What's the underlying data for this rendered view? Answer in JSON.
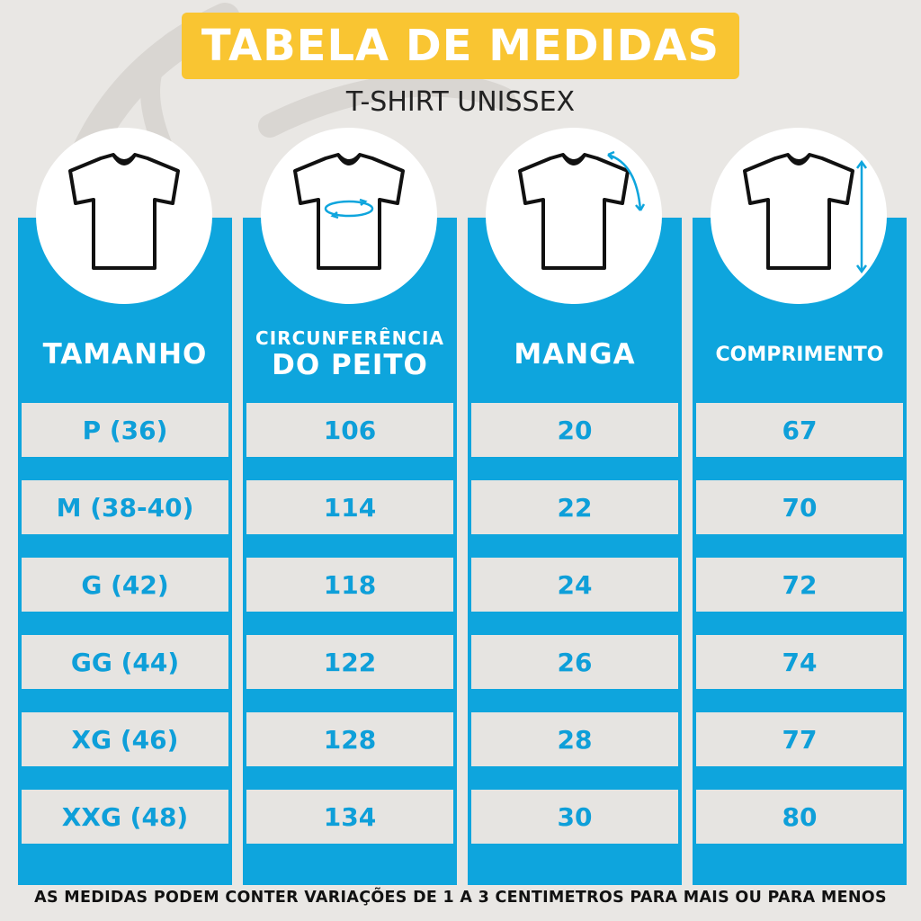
{
  "title": "TABELA DE MEDIDAS",
  "subtitle": "T-SHIRT UNISSEX",
  "colors": {
    "accent_yellow": "#f9c532",
    "accent_blue": "#0ea5dd",
    "cell_bg": "#e6e4e1",
    "background": "#e9e7e4"
  },
  "columns": [
    {
      "header_line1": "TAMANHO",
      "header_line2": "",
      "icon": "tshirt-icon"
    },
    {
      "header_line1": "CIRCUNFERÊNCIA",
      "header_line2": "DO PEITO",
      "icon": "tshirt-chest-measure-icon"
    },
    {
      "header_line1": "MANGA",
      "header_line2": "",
      "icon": "tshirt-sleeve-measure-icon"
    },
    {
      "header_line1": "COMPRIMENTO",
      "header_line2": "",
      "icon": "tshirt-length-measure-icon"
    }
  ],
  "rows": [
    [
      "P (36)",
      "106",
      "20",
      "67"
    ],
    [
      "M (38-40)",
      "114",
      "22",
      "70"
    ],
    [
      "G (42)",
      "118",
      "24",
      "72"
    ],
    [
      "GG (44)",
      "122",
      "26",
      "74"
    ],
    [
      "XG (46)",
      "128",
      "28",
      "77"
    ],
    [
      "XXG (48)",
      "134",
      "30",
      "80"
    ]
  ],
  "footer": "AS MEDIDAS PODEM CONTER VARIAÇÕES DE 1 A 3 CENTIMETROS PARA MAIS OU PARA MENOS"
}
